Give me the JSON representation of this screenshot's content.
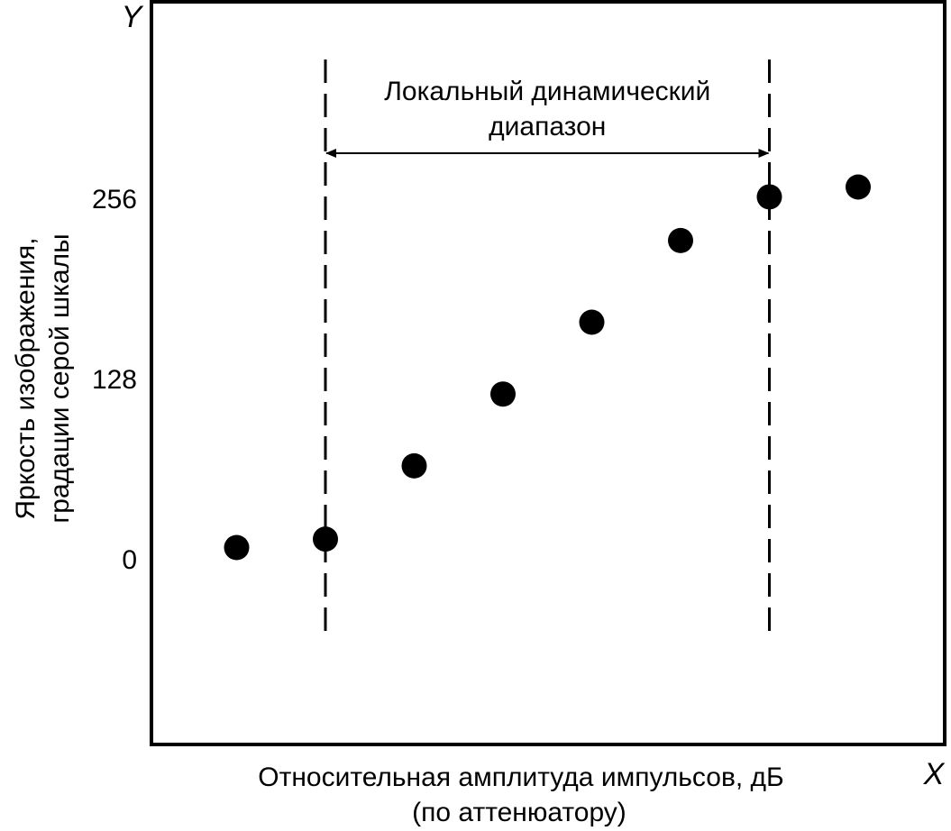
{
  "chart_data": {
    "type": "scatter",
    "xlabel": [
      "Относительная амплитуда импульсов, дБ",
      "(по аттенюатору)"
    ],
    "ylabel": [
      "Яркость изображения,",
      "градации серой шкалы"
    ],
    "x_axis_letter": "X",
    "y_axis_letter": "Y",
    "ylim": [
      -128,
      384
    ],
    "y_ticks": [
      {
        "value": 0,
        "label": "0"
      },
      {
        "value": 128,
        "label": "128"
      },
      {
        "value": 256,
        "label": "256"
      }
    ],
    "x_ticks": [],
    "xlim": [
      0,
      9
    ],
    "grid": false,
    "points": [
      {
        "x": 1,
        "y": 8
      },
      {
        "x": 2,
        "y": 14
      },
      {
        "x": 3,
        "y": 66
      },
      {
        "x": 4,
        "y": 117
      },
      {
        "x": 5,
        "y": 168
      },
      {
        "x": 6,
        "y": 226
      },
      {
        "x": 7,
        "y": 257
      },
      {
        "x": 8,
        "y": 264
      }
    ],
    "range_markers": {
      "x_start": 2,
      "x_end": 7,
      "label": [
        "Локальный динамический",
        "диапазон"
      ]
    },
    "colors": {
      "marker": "#000000",
      "frame": "#000000",
      "background": "#ffffff"
    }
  }
}
